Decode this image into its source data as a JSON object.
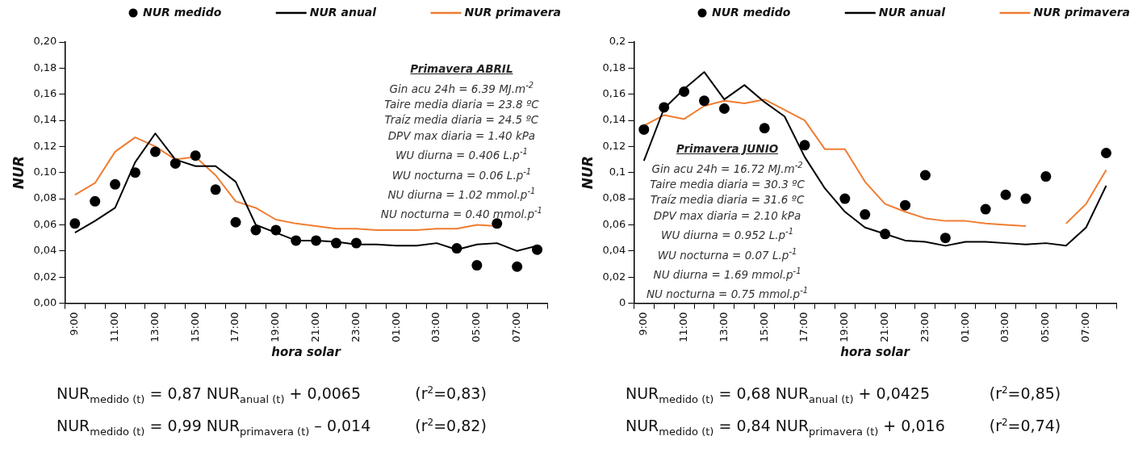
{
  "chart_data": [
    {
      "type": "line",
      "xlabel": "hora solar",
      "ylabel": "NUR",
      "legend": "top",
      "marker": "none",
      "categories": [
        "9:00",
        null,
        "11:00",
        null,
        "13:00",
        null,
        "15:00",
        null,
        "17:00",
        null,
        "19:00",
        null,
        "21:00",
        null,
        "23:00",
        null,
        "01:00",
        null,
        "03:00",
        null,
        "05:00",
        null,
        "07:00",
        null
      ],
      "ylim": [
        0,
        0.2
      ],
      "yticks": [
        {
          "value": 0,
          "label": "0,00"
        },
        {
          "value": 0.02,
          "label": "0,02"
        },
        {
          "value": 0.04,
          "label": "0,04"
        },
        {
          "value": 0.06,
          "label": "0,06"
        },
        {
          "value": 0.08,
          "label": "0,08"
        },
        {
          "value": 0.1,
          "label": "0,10"
        },
        {
          "value": 0.12,
          "label": "0,12"
        },
        {
          "value": 0.14,
          "label": "0,14"
        },
        {
          "value": 0.16,
          "label": "0,16"
        },
        {
          "value": 0.18,
          "label": "0,18"
        },
        {
          "value": 0.2,
          "label": "0,20"
        }
      ],
      "series": [
        {
          "name": "NUR medido",
          "type": "scatter",
          "marker": "circle",
          "color": "#000000",
          "values": [
            0.061,
            0.078,
            0.091,
            0.1,
            0.116,
            0.107,
            0.113,
            0.087,
            0.062,
            0.056,
            0.056,
            0.048,
            0.048,
            0.046,
            0.046,
            null,
            null,
            null,
            null,
            0.042,
            0.029,
            0.061,
            0.028,
            0.041
          ]
        },
        {
          "name": "NUR anual",
          "type": "line",
          "color": "#000000",
          "values": [
            0.054,
            0.063,
            0.073,
            0.108,
            0.13,
            0.11,
            0.105,
            0.105,
            0.093,
            0.06,
            0.054,
            0.048,
            0.048,
            0.047,
            0.045,
            0.045,
            0.044,
            0.044,
            0.046,
            0.041,
            0.045,
            0.046,
            0.04,
            0.044
          ]
        },
        {
          "name": "NUR primavera",
          "type": "line",
          "color": "#ef7d32",
          "values": [
            0.083,
            0.092,
            0.116,
            0.127,
            0.12,
            0.11,
            0.112,
            0.098,
            0.078,
            0.073,
            0.064,
            0.061,
            0.059,
            0.057,
            0.057,
            0.056,
            0.056,
            0.056,
            0.057,
            0.057,
            0.06,
            0.059,
            null,
            null
          ]
        }
      ],
      "annotations": [
        "Primavera ABRIL",
        "Gin acu 24h = 6.39 MJ.m$^{-2}$",
        "Taire media diaria  = 23.8 ºC",
        "Traíz media diaria = 24.5 ºC",
        "DPV max diaria = 1.40 kPa",
        "WU diurna = 0.406 L.p$^{-1}$",
        "WU nocturna = 0.06 L.p$^{-1}$",
        "NU diurna = 1.02 mmol.p$^{-1}$",
        "NU nocturna = 0.40 mmol.p$^{-1}$",
        "NUR$_{medido (t)}$ = 0,87 NUR$_{anual (t)}$ + 0,0065",
        "(r$^{2}$=0,83)",
        "NUR$_{medido (t)}$ = 0,99 NUR$_{primavera (t)}$ – 0,014",
        "(r$^{2}$=0,82)"
      ]
    },
    {
      "type": "line",
      "xlabel": "hora solar",
      "ylabel": "NUR",
      "legend": "top",
      "marker": "none",
      "categories": [
        "9:00",
        null,
        "11:00",
        null,
        "13:00",
        null,
        "15:00",
        null,
        "17:00",
        null,
        "19:00",
        null,
        "21:00",
        null,
        "23:00",
        null,
        "01:00",
        null,
        "03:00",
        null,
        "05:00",
        null,
        "07:00",
        null
      ],
      "ylim": [
        0,
        0.2
      ],
      "yticks": [
        0,
        {
          "value": 0.02,
          "label": "0,02"
        },
        {
          "value": 0.04,
          "label": "0,04"
        },
        {
          "value": 0.06,
          "label": "0,06"
        },
        {
          "value": 0.08,
          "label": "0,08"
        },
        {
          "value": 0.1,
          "label": "0,1"
        },
        {
          "value": 0.12,
          "label": "0,12"
        },
        {
          "value": 0.14,
          "label": "0,14"
        },
        {
          "value": 0.16,
          "label": "0,16"
        },
        {
          "value": 0.18,
          "label": "0,18"
        },
        {
          "value": 0.2,
          "label": "0,2"
        }
      ],
      "series": [
        {
          "name": "NUR medido",
          "type": "scatter",
          "marker": "circle",
          "color": "#000000",
          "values": [
            0.133,
            0.15,
            0.162,
            0.155,
            0.149,
            null,
            0.134,
            null,
            0.121,
            null,
            0.08,
            0.068,
            0.053,
            0.075,
            0.098,
            0.05,
            null,
            0.072,
            0.083,
            0.08,
            0.097,
            null,
            null,
            0.115
          ]
        },
        {
          "name": "NUR anual",
          "type": "line",
          "color": "#000000",
          "values": [
            0.109,
            0.149,
            0.164,
            0.177,
            0.156,
            0.167,
            0.154,
            0.143,
            0.112,
            0.088,
            0.07,
            0.058,
            0.053,
            0.048,
            0.047,
            0.044,
            0.047,
            0.047,
            0.046,
            0.045,
            0.046,
            0.044,
            0.058,
            0.09
          ]
        },
        {
          "name": "NUR primavera",
          "type": "line",
          "color": "#ef7d32",
          "values": [
            0.136,
            0.144,
            0.141,
            0.151,
            0.155,
            0.153,
            0.156,
            0.148,
            0.14,
            0.118,
            0.118,
            0.093,
            0.076,
            0.07,
            0.065,
            0.063,
            0.063,
            0.061,
            0.06,
            0.059,
            null,
            0.061,
            0.076,
            0.102
          ]
        }
      ],
      "annotations": [
        "Primavera JUNIO",
        "Gin acu 24h = 16.72 MJ.m$^{-2}$",
        "Taire media diaria  = 30.3 ºC",
        "Traíz media diaria = 31.6 ºC",
        "DPV max diaria = 2.10 kPa",
        "WU diurna = 0.952 L.p$^{-1}$",
        "WU nocturna = 0.07 L.p$^{-1}$",
        "NU diurna = 1.69 mmol.p$^{-1}$",
        "NU nocturna = 0.75 mmol.p$^{-1}$",
        "NUR$_{medido (t)}$ = 0,68 NUR$_{anual (t)}$ + 0,0425",
        "(r$^{2}$=0,85)",
        "NUR$_{medido (t)}$ = 0,84 NUR$_{primavera (t)}$ + 0,016",
        "(r$^{2}$=0,74)"
      ]
    }
  ]
}
